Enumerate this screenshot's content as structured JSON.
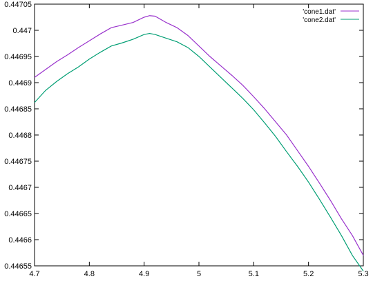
{
  "chart_data": {
    "type": "line",
    "title": "",
    "xlabel": "",
    "ylabel": "",
    "xlim": [
      4.7,
      5.3
    ],
    "ylim": [
      0.44655,
      0.44705
    ],
    "x_ticks": [
      4.7,
      4.8,
      4.9,
      5,
      5.1,
      5.2,
      5.3
    ],
    "x_tick_labels": [
      "4.7",
      "4.8",
      "4.9",
      "5",
      "5.1",
      "5.2",
      "5.3"
    ],
    "y_ticks": [
      0.44655,
      0.4466,
      0.44665,
      0.4467,
      0.44675,
      0.4468,
      0.44685,
      0.4469,
      0.44695,
      0.447,
      0.44705
    ],
    "y_tick_labels": [
      "0.44655",
      "0.4466",
      "0.44665",
      "0.4467",
      "0.44675",
      "0.4468",
      "0.44685",
      "0.4469",
      "0.44695",
      "0.447",
      "0.44705"
    ],
    "grid": false,
    "legend_position": "top-right",
    "series": [
      {
        "name": "'cone1.dat'",
        "color": "#9932cc",
        "points": [
          [
            4.7,
            0.44691
          ],
          [
            4.72,
            0.446925
          ],
          [
            4.74,
            0.44694
          ],
          [
            4.76,
            0.446953
          ],
          [
            4.78,
            0.446967
          ],
          [
            4.8,
            0.44698
          ],
          [
            4.82,
            0.446993
          ],
          [
            4.84,
            0.447005
          ],
          [
            4.86,
            0.44701
          ],
          [
            4.88,
            0.447015
          ],
          [
            4.9,
            0.447025
          ],
          [
            4.91,
            0.447028
          ],
          [
            4.92,
            0.447027
          ],
          [
            4.94,
            0.447015
          ],
          [
            4.96,
            0.447005
          ],
          [
            4.98,
            0.44699
          ],
          [
            5.0,
            0.44697
          ],
          [
            5.02,
            0.44695
          ],
          [
            5.04,
            0.446932
          ],
          [
            5.06,
            0.446914
          ],
          [
            5.08,
            0.446895
          ],
          [
            5.1,
            0.446873
          ],
          [
            5.12,
            0.44685
          ],
          [
            5.14,
            0.446825
          ],
          [
            5.16,
            0.4468
          ],
          [
            5.18,
            0.44677
          ],
          [
            5.2,
            0.44674
          ],
          [
            5.22,
            0.446708
          ],
          [
            5.24,
            0.446675
          ],
          [
            5.26,
            0.44664
          ],
          [
            5.28,
            0.446608
          ],
          [
            5.3,
            0.44657
          ]
        ]
      },
      {
        "name": "'cone2.dat'",
        "color": "#009e73",
        "points": [
          [
            4.7,
            0.446862
          ],
          [
            4.72,
            0.446885
          ],
          [
            4.74,
            0.446902
          ],
          [
            4.76,
            0.446917
          ],
          [
            4.78,
            0.44693
          ],
          [
            4.8,
            0.446945
          ],
          [
            4.82,
            0.446958
          ],
          [
            4.84,
            0.44697
          ],
          [
            4.86,
            0.446976
          ],
          [
            4.88,
            0.446983
          ],
          [
            4.9,
            0.446992
          ],
          [
            4.91,
            0.446994
          ],
          [
            4.92,
            0.446992
          ],
          [
            4.94,
            0.446985
          ],
          [
            4.96,
            0.446978
          ],
          [
            4.98,
            0.446967
          ],
          [
            5.0,
            0.44695
          ],
          [
            5.02,
            0.44693
          ],
          [
            5.04,
            0.44691
          ],
          [
            5.06,
            0.44689
          ],
          [
            5.08,
            0.44687
          ],
          [
            5.1,
            0.446848
          ],
          [
            5.12,
            0.446823
          ],
          [
            5.14,
            0.446797
          ],
          [
            5.16,
            0.446768
          ],
          [
            5.18,
            0.44674
          ],
          [
            5.2,
            0.44671
          ],
          [
            5.22,
            0.446677
          ],
          [
            5.24,
            0.446643
          ],
          [
            5.26,
            0.446608
          ],
          [
            5.28,
            0.44657
          ],
          [
            5.3,
            0.44654
          ]
        ]
      }
    ]
  }
}
